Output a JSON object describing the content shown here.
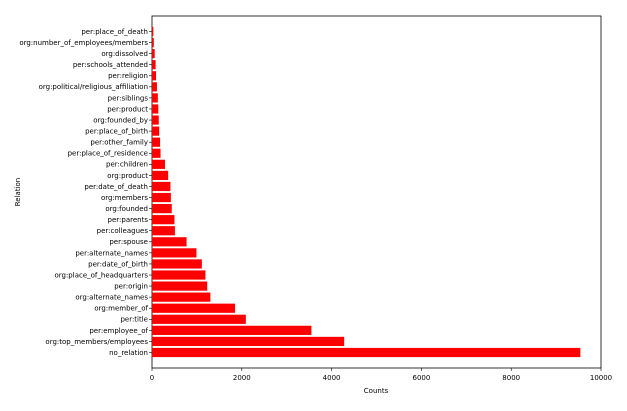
{
  "chart_data": {
    "type": "bar",
    "orientation": "horizontal",
    "xlabel": "Counts",
    "ylabel": "Relation",
    "xlim": [
      0,
      10000
    ],
    "xticks": [
      0,
      2000,
      4000,
      6000,
      8000,
      10000
    ],
    "bar_color": "#ff0000",
    "categories": [
      "no_relation",
      "org:top_members/employees",
      "per:employee_of",
      "per:title",
      "org:member_of",
      "org:alternate_names",
      "per:origin",
      "org:place_of_headquarters",
      "per:date_of_birth",
      "per:alternate_names",
      "per:spouse",
      "per:colleagues",
      "per:parents",
      "org:founded",
      "org:members",
      "per:date_of_death",
      "org:product",
      "per:children",
      "per:place_of_residence",
      "per:other_family",
      "per:place_of_birth",
      "org:founded_by",
      "per:product",
      "per:siblings",
      "org:political/religious_affiliation",
      "per:religion",
      "per:schools_attended",
      "org:dissolved",
      "org:number_of_employees/members",
      "per:place_of_death"
    ],
    "values": [
      9540,
      4280,
      3550,
      2090,
      1850,
      1300,
      1230,
      1190,
      1110,
      990,
      770,
      510,
      500,
      440,
      420,
      410,
      360,
      290,
      190,
      180,
      160,
      150,
      140,
      130,
      110,
      90,
      80,
      60,
      40,
      30
    ]
  }
}
